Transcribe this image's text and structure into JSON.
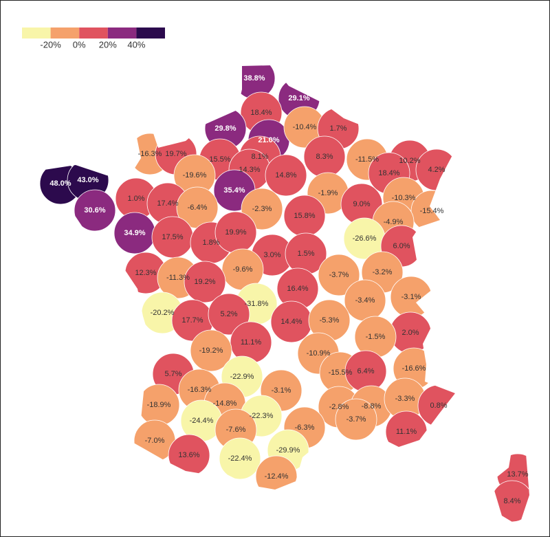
{
  "legend": {
    "colors": [
      "#f8f5a9",
      "#f5a16b",
      "#e0535f",
      "#8b2a7f",
      "#2c0a4d"
    ],
    "ticks": [
      {
        "value": -20,
        "label": "-20%"
      },
      {
        "value": 0,
        "label": "0%"
      },
      {
        "value": 20,
        "label": "20%"
      },
      {
        "value": 40,
        "label": "40%"
      }
    ]
  },
  "regions": [
    {
      "label": "38.8%",
      "value": 38.8
    },
    {
      "label": "29.1%",
      "value": 29.1
    },
    {
      "label": "18.4%",
      "value": 18.4
    },
    {
      "label": "29.8%",
      "value": 29.8
    },
    {
      "label": "21.0%",
      "value": 21.0
    },
    {
      "label": "-10.4%",
      "value": -10.4
    },
    {
      "label": "1.7%",
      "value": 1.7
    },
    {
      "label": "-16.3%",
      "value": -16.3
    },
    {
      "label": "19.7%",
      "value": 19.7
    },
    {
      "label": "15.5%",
      "value": 15.5
    },
    {
      "label": "8.1%",
      "value": 8.1
    },
    {
      "label": "14.3%",
      "value": 14.3
    },
    {
      "label": "14.8%",
      "value": 14.8
    },
    {
      "label": "8.3%",
      "value": 8.3
    },
    {
      "label": "-11.5%",
      "value": -11.5
    },
    {
      "label": "10.2%",
      "value": 10.2
    },
    {
      "label": "4.2%",
      "value": 4.2
    },
    {
      "label": "18.4%",
      "value": 18.4
    },
    {
      "label": "48.0%",
      "value": 48.0
    },
    {
      "label": "43.0%",
      "value": 43.0
    },
    {
      "label": "-19.6%",
      "value": -19.6
    },
    {
      "label": "35.4%",
      "value": 35.4
    },
    {
      "label": "-1.9%",
      "value": -1.9
    },
    {
      "label": "-10.3%",
      "value": -10.3
    },
    {
      "label": "-15.4%",
      "value": -15.4
    },
    {
      "label": "1.0%",
      "value": 1.0
    },
    {
      "label": "17.4%",
      "value": 17.4
    },
    {
      "label": "-6.4%",
      "value": -6.4
    },
    {
      "label": "-2.3%",
      "value": -2.3
    },
    {
      "label": "9.0%",
      "value": 9.0
    },
    {
      "label": "15.8%",
      "value": 15.8
    },
    {
      "label": "-4.9%",
      "value": -4.9
    },
    {
      "label": "30.6%",
      "value": 30.6
    },
    {
      "label": "34.9%",
      "value": 34.9
    },
    {
      "label": "17.5%",
      "value": 17.5
    },
    {
      "label": "1.8%",
      "value": 1.8
    },
    {
      "label": "19.9%",
      "value": 19.9
    },
    {
      "label": "-26.6%",
      "value": -26.6
    },
    {
      "label": "6.0%",
      "value": 6.0
    },
    {
      "label": "3.0%",
      "value": 3.0
    },
    {
      "label": "1.5%",
      "value": 1.5
    },
    {
      "label": "-9.6%",
      "value": -9.6
    },
    {
      "label": "12.3%",
      "value": 12.3
    },
    {
      "label": "-11.3%",
      "value": -11.3
    },
    {
      "label": "19.2%",
      "value": 19.2
    },
    {
      "label": "-3.7%",
      "value": -3.7
    },
    {
      "label": "-3.2%",
      "value": -3.2
    },
    {
      "label": "-3.1%",
      "value": -3.1
    },
    {
      "label": "16.4%",
      "value": 16.4
    },
    {
      "label": "-31.8%",
      "value": -31.8
    },
    {
      "label": "-3.4%",
      "value": -3.4
    },
    {
      "label": "-20.2%",
      "value": -20.2
    },
    {
      "label": "17.7%",
      "value": 17.7
    },
    {
      "label": "5.2%",
      "value": 5.2
    },
    {
      "label": "14.4%",
      "value": 14.4
    },
    {
      "label": "-5.3%",
      "value": -5.3
    },
    {
      "label": "2.0%",
      "value": 2.0
    },
    {
      "label": "11.1%",
      "value": 11.1
    },
    {
      "label": "-1.5%",
      "value": -1.5
    },
    {
      "label": "-10.9%",
      "value": -10.9
    },
    {
      "label": "-19.2%",
      "value": -19.2
    },
    {
      "label": "-15.5%",
      "value": -15.5
    },
    {
      "label": "6.4%",
      "value": 6.4
    },
    {
      "label": "-16.6%",
      "value": -16.6
    },
    {
      "label": "5.7%",
      "value": 5.7
    },
    {
      "label": "-22.9%",
      "value": -22.9
    },
    {
      "label": "-3.1%",
      "value": -3.1
    },
    {
      "label": "-16.3%",
      "value": -16.3
    },
    {
      "label": "-18.9%",
      "value": -18.9
    },
    {
      "label": "-14.8%",
      "value": -14.8
    },
    {
      "label": "-2.8%",
      "value": -2.8
    },
    {
      "label": "-8.8%",
      "value": -8.8
    },
    {
      "label": "-3.3%",
      "value": -3.3
    },
    {
      "label": "0.8%",
      "value": 0.8
    },
    {
      "label": "-22.3%",
      "value": -22.3
    },
    {
      "label": "-24.4%",
      "value": -24.4
    },
    {
      "label": "-7.6%",
      "value": -7.6
    },
    {
      "label": "-3.7%",
      "value": -3.7
    },
    {
      "label": "-6.3%",
      "value": -6.3
    },
    {
      "label": "-7.0%",
      "value": -7.0
    },
    {
      "label": "11.1%",
      "value": 11.1
    },
    {
      "label": "-29.9%",
      "value": -29.9
    },
    {
      "label": "13.6%",
      "value": 13.6
    },
    {
      "label": "-22.4%",
      "value": -22.4
    },
    {
      "label": "-12.4%",
      "value": -12.4
    },
    {
      "label": "13.7%",
      "value": 13.7
    },
    {
      "label": "8.4%",
      "value": 8.4
    }
  ]
}
